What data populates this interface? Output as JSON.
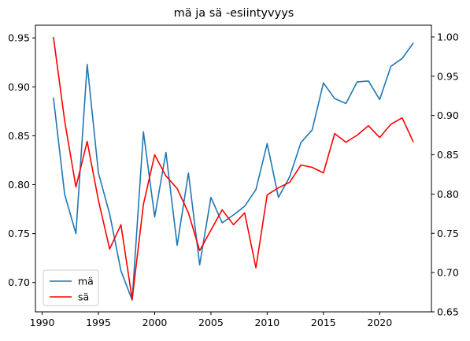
{
  "chart_data": {
    "type": "line",
    "title": "mä ja sä -esiintyvyys",
    "xlabel": "",
    "ylabel": "",
    "xlim": [
      1989.4,
      2024.6
    ],
    "x_ticks": [
      1990,
      1995,
      2000,
      2005,
      2010,
      2015,
      2020
    ],
    "left_axis": {
      "ylim": [
        0.67,
        0.963
      ],
      "ticks": [
        0.7,
        0.75,
        0.8,
        0.85,
        0.9,
        0.95
      ]
    },
    "right_axis": {
      "ylim": [
        0.65,
        1.015
      ],
      "ticks": [
        0.65,
        0.7,
        0.75,
        0.8,
        0.85,
        0.9,
        0.95,
        1.0
      ]
    },
    "grid": false,
    "legend_position": "lower-left",
    "x": [
      1991,
      1992,
      1993,
      1994,
      1995,
      1996,
      1997,
      1998,
      1999,
      2000,
      2001,
      2002,
      2003,
      2004,
      2005,
      2006,
      2007,
      2008,
      2009,
      2010,
      2011,
      2012,
      2013,
      2014,
      2015,
      2016,
      2017,
      2018,
      2019,
      2020,
      2021,
      2022,
      2023
    ],
    "series": [
      {
        "name": "mä",
        "axis": "left",
        "color": "#1f77b4",
        "values": [
          0.889,
          0.79,
          0.75,
          0.923,
          0.812,
          0.77,
          0.712,
          0.682,
          0.854,
          0.767,
          0.833,
          0.738,
          0.812,
          0.718,
          0.787,
          0.761,
          0.769,
          0.778,
          0.795,
          0.842,
          0.787,
          0.808,
          0.843,
          0.856,
          0.904,
          0.888,
          0.883,
          0.905,
          0.906,
          0.887,
          0.921,
          0.929,
          0.945
        ]
      },
      {
        "name": "sä",
        "axis": "right",
        "color": "#ff0000",
        "values": [
          1.0,
          0.893,
          0.809,
          0.867,
          0.792,
          0.73,
          0.761,
          0.666,
          0.787,
          0.85,
          0.823,
          0.807,
          0.776,
          0.728,
          0.754,
          0.78,
          0.761,
          0.776,
          0.706,
          0.799,
          0.808,
          0.815,
          0.837,
          0.834,
          0.827,
          0.877,
          0.866,
          0.875,
          0.887,
          0.872,
          0.889,
          0.897,
          0.866
        ]
      }
    ]
  }
}
